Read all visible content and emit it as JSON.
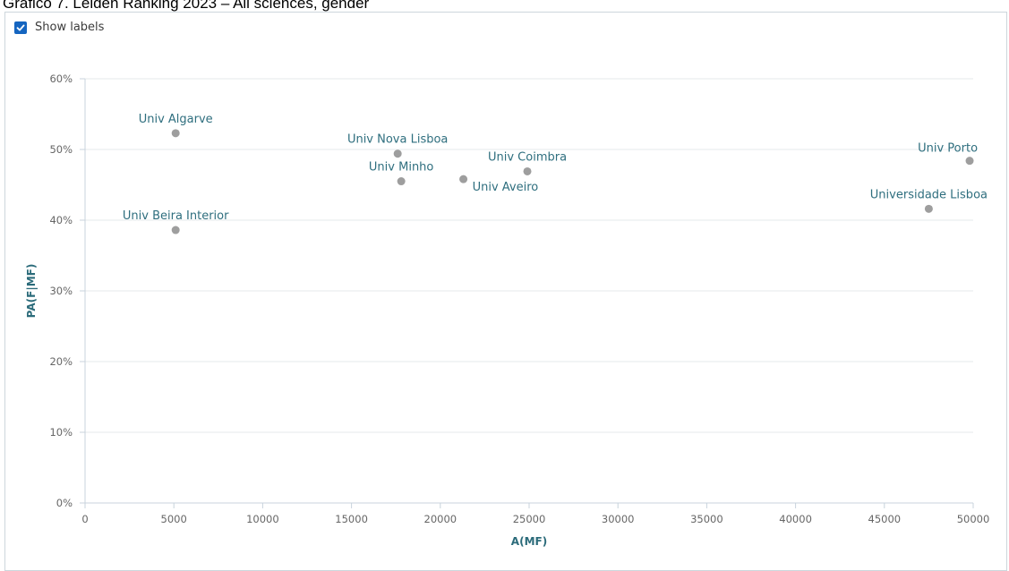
{
  "page": {
    "caption": "Gráfico 7. Leiden Ranking 2023 – All sciences, gender"
  },
  "controls": {
    "show_labels_label": "Show labels",
    "show_labels_checked": true
  },
  "colors": {
    "point": "#9e9e9e",
    "label": "#2e6e7e",
    "axis_title": "#2b6b7a",
    "grid": "#e4e8eb",
    "axis": "#c8d3dc",
    "checkbox": "#1565c0"
  },
  "chart_data": {
    "type": "scatter",
    "title": "",
    "xlabel": "A(MF)",
    "ylabel": "PA(F|MF)",
    "xlim": [
      0,
      50000
    ],
    "ylim": [
      0,
      60
    ],
    "x_ticks": [
      "0",
      "5000",
      "10000",
      "15000",
      "20000",
      "25000",
      "30000",
      "35000",
      "40000",
      "45000",
      "50000"
    ],
    "y_ticks": [
      "0%",
      "10%",
      "20%",
      "30%",
      "40%",
      "50%",
      "60%"
    ],
    "grid": "horizontal",
    "points": [
      {
        "name": "Univ Algarve",
        "x": 5100,
        "y": 52.3,
        "label_pos": "above"
      },
      {
        "name": "Univ Beira Interior",
        "x": 5100,
        "y": 38.6,
        "label_pos": "above"
      },
      {
        "name": "Univ Nova Lisboa",
        "x": 17600,
        "y": 49.4,
        "label_pos": "above"
      },
      {
        "name": "Univ Minho",
        "x": 17800,
        "y": 45.5,
        "label_pos": "above"
      },
      {
        "name": "Univ Aveiro",
        "x": 21300,
        "y": 45.8,
        "label_pos": "below-right"
      },
      {
        "name": "Univ Coimbra",
        "x": 24900,
        "y": 46.9,
        "label_pos": "above"
      },
      {
        "name": "Universidade Lisboa",
        "x": 47500,
        "y": 41.6,
        "label_pos": "above"
      },
      {
        "name": "Univ Porto",
        "x": 49800,
        "y": 48.4,
        "label_pos": "above-left"
      }
    ]
  }
}
